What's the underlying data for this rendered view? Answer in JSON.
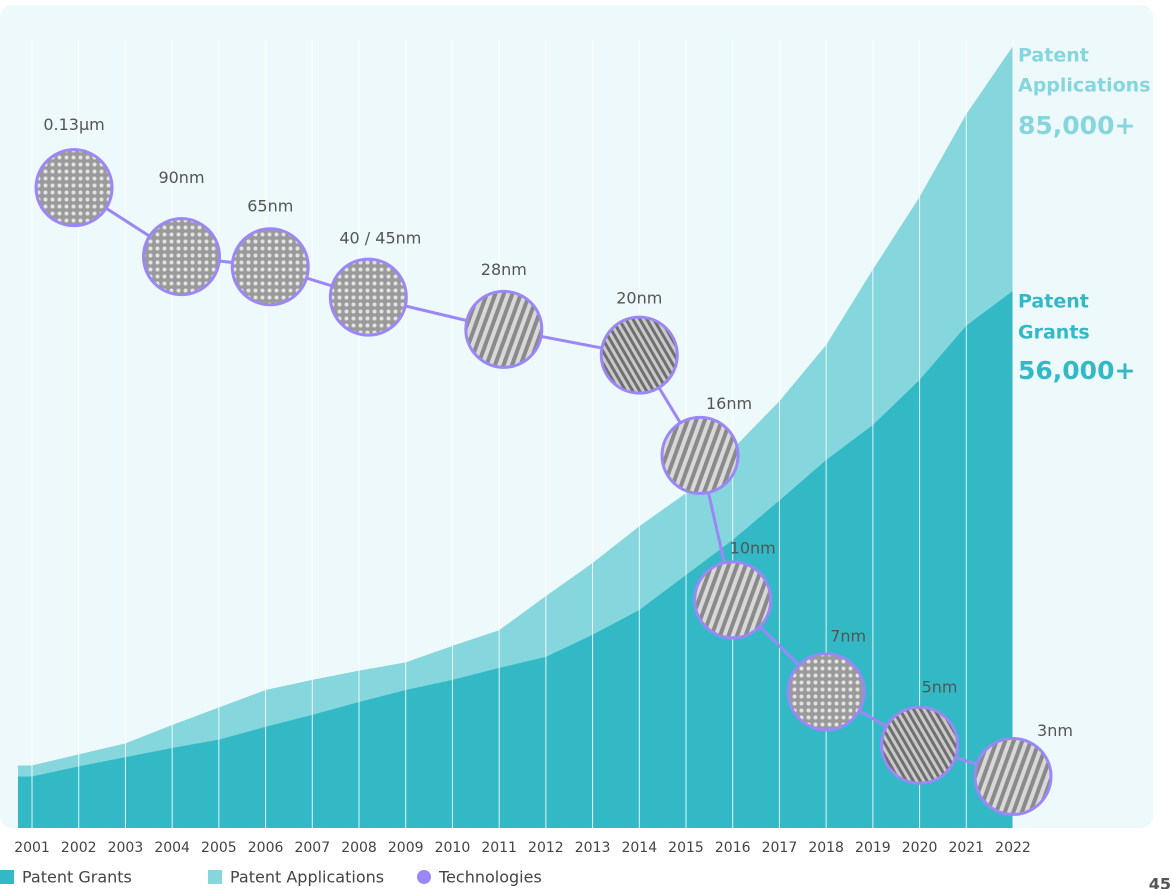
{
  "chart_data": {
    "type": "area",
    "x": [
      2001,
      2002,
      2003,
      2004,
      2005,
      2006,
      2007,
      2008,
      2009,
      2010,
      2011,
      2012,
      2013,
      2014,
      2015,
      2016,
      2017,
      2018,
      2019,
      2020,
      2021,
      2022
    ],
    "xlim": [
      2000.7,
      2022
    ],
    "ylim": [
      0,
      90000
    ],
    "series": [
      {
        "name": "Patent Applications",
        "color": "#86d6de",
        "values": [
          6800,
          8000,
          9200,
          11200,
          13100,
          15000,
          16100,
          17100,
          18000,
          19800,
          21500,
          25200,
          28800,
          32800,
          36400,
          41200,
          46400,
          52500,
          60700,
          68600,
          77600,
          85000
        ]
      },
      {
        "name": "Patent Grants",
        "color": "#33b9c6",
        "values": [
          5600,
          6700,
          7700,
          8700,
          9600,
          11000,
          12300,
          13700,
          15000,
          16100,
          17400,
          18600,
          21000,
          23700,
          27500,
          31300,
          35600,
          40000,
          43800,
          48700,
          54600,
          58400
        ]
      }
    ],
    "technologies": {
      "name": "Technologies",
      "color": "#9b87f5",
      "labels": [
        "0.13µm",
        "90nm",
        "65nm",
        "40 / 45nm",
        "28nm",
        "20nm",
        "16nm",
        "10nm",
        "7nm",
        "5nm",
        "3nm"
      ],
      "x": [
        2001.9,
        2004.2,
        2006.1,
        2008.2,
        2011.1,
        2014.0,
        2015.3,
        2016.0,
        2018.0,
        2020.0,
        2022.0
      ],
      "values": [
        69600,
        62100,
        61000,
        57700,
        54200,
        51400,
        40500,
        24800,
        14800,
        9000,
        5600
      ]
    },
    "annotations": [
      {
        "lines": [
          "Patent",
          "Applications"
        ],
        "value_text": "85,000+",
        "color": "#86d6de"
      },
      {
        "lines": [
          "Patent",
          "Grants"
        ],
        "value_text": "56,000+",
        "color": "#33b9c6"
      }
    ],
    "legend_order": [
      "Patent Grants",
      "Patent Applications",
      "Technologies"
    ],
    "page_number": "45"
  }
}
